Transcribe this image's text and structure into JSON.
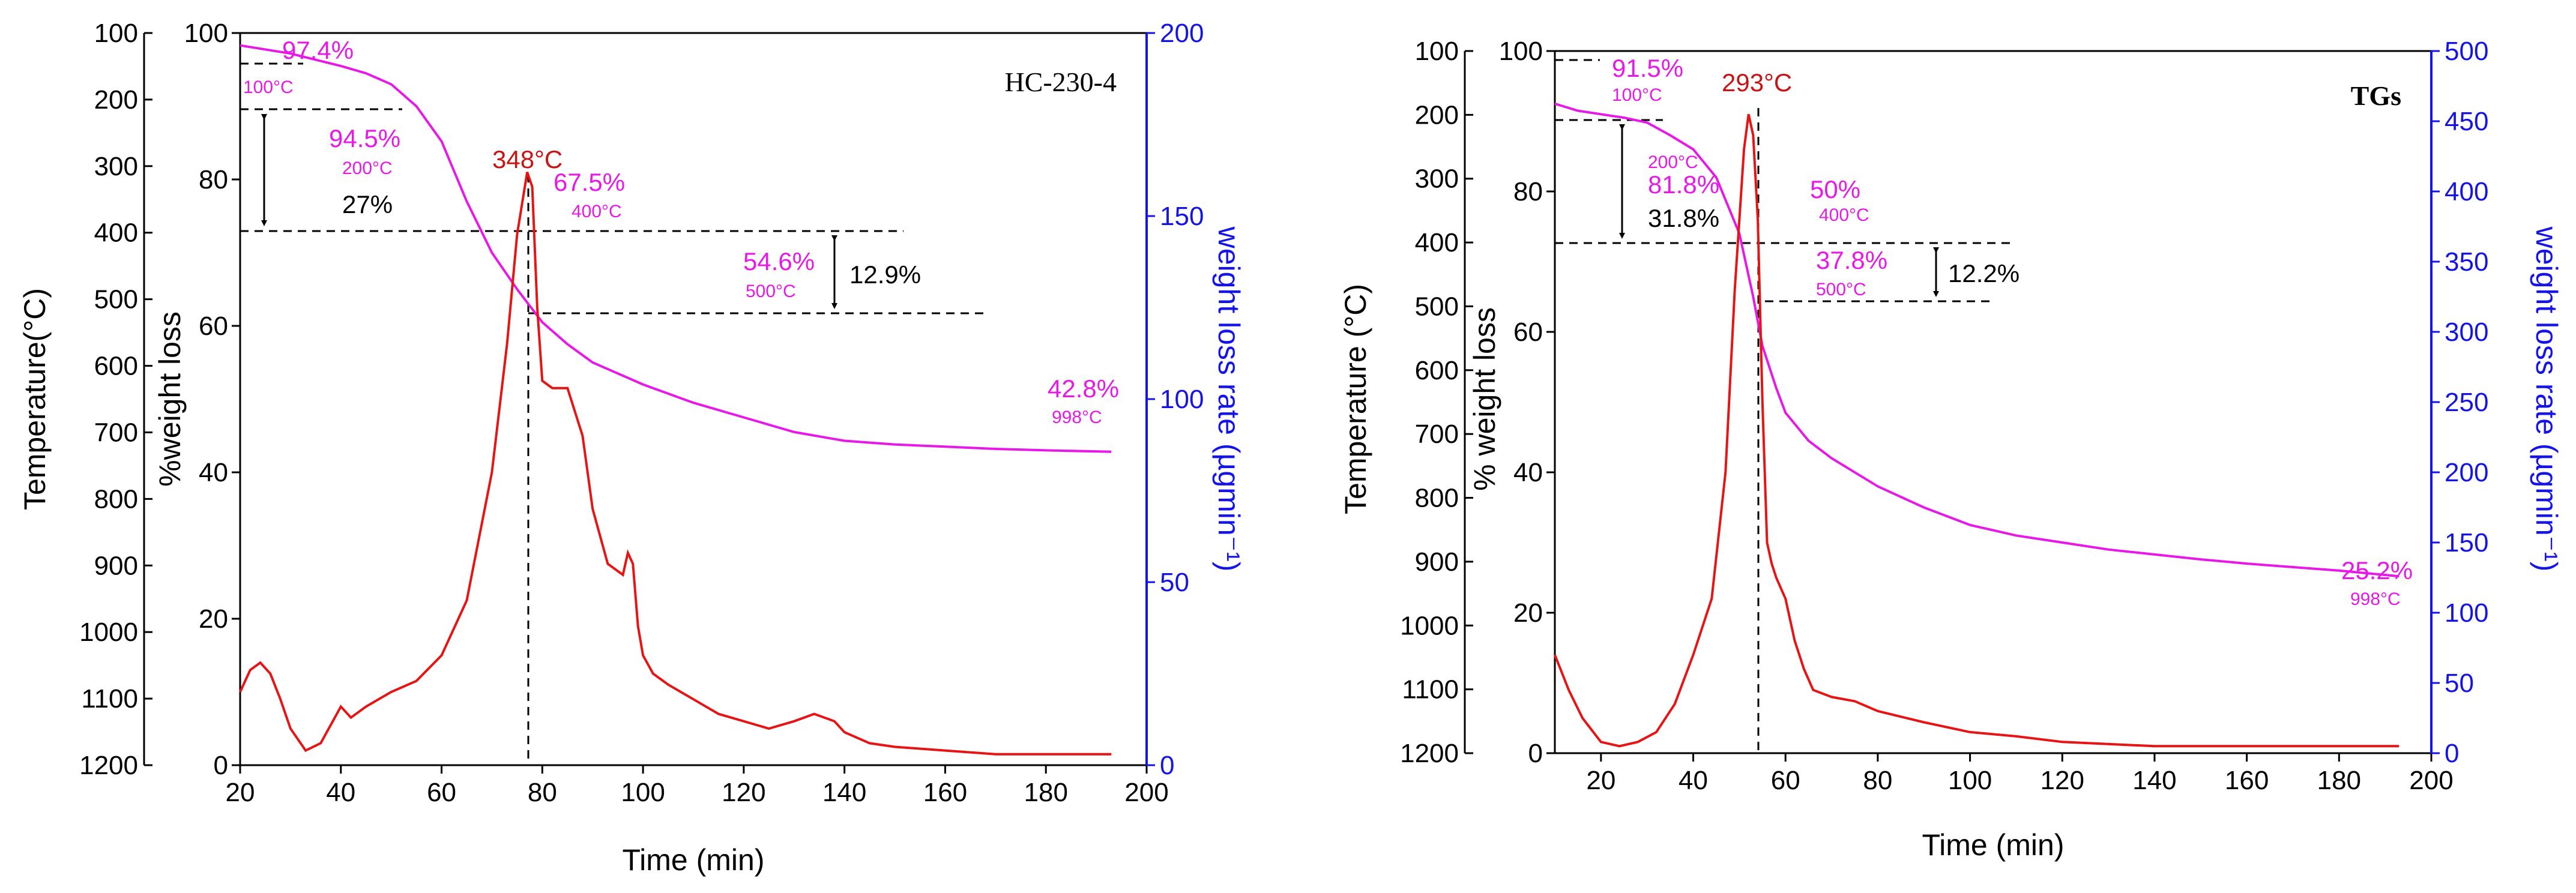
{
  "colors": {
    "weight_curve": "#e619e6",
    "rate_curve": "#e61414",
    "right_axis": "#1414e6",
    "annotation_magenta": "#e619e6",
    "peak_label": "#c81414",
    "black": "#000000"
  },
  "chart_data": [
    {
      "type": "line",
      "label": "HC-230-4",
      "xlabel": "Time (min)",
      "xlim": [
        20,
        200
      ],
      "xticks": [
        "20",
        "40",
        "60",
        "80",
        "100",
        "120",
        "140",
        "160",
        "180",
        "200"
      ],
      "ylabel_weight": "%weight loss",
      "ylim_weight": [
        0,
        100
      ],
      "yticks_weight": [
        "0",
        "20",
        "40",
        "60",
        "80",
        "100"
      ],
      "ylabel_temp": "Temperature(°C)",
      "yticks_temp": [
        "100",
        "200",
        "300",
        "400",
        "500",
        "600",
        "700",
        "800",
        "900",
        "1000",
        "1100",
        "1200"
      ],
      "ylabel_rate": "weight loss rate (µgmin⁻¹)",
      "ylim_rate": [
        0,
        200
      ],
      "yticks_rate": [
        "0",
        "50",
        "100",
        "150",
        "200"
      ],
      "series": [
        {
          "name": "% weight loss",
          "axis": "weight",
          "x": [
            20,
            30,
            40,
            45,
            50,
            55,
            60,
            65,
            70,
            75,
            80,
            85,
            90,
            100,
            110,
            120,
            130,
            140,
            150,
            160,
            170,
            180,
            193
          ],
          "y": [
            98.3,
            97.2,
            95.5,
            94.5,
            93.0,
            90.0,
            85.2,
            77.0,
            70.0,
            65.0,
            60.5,
            57.5,
            55.0,
            52.0,
            49.5,
            47.5,
            45.5,
            44.3,
            43.8,
            43.5,
            43.2,
            43.0,
            42.8
          ]
        },
        {
          "name": "weight loss rate",
          "axis": "rate",
          "x": [
            20,
            22,
            24,
            26,
            28,
            30,
            33,
            36,
            40,
            42,
            45,
            50,
            55,
            60,
            65,
            70,
            73,
            75,
            77,
            78,
            79,
            80,
            82,
            85,
            88,
            90,
            93,
            96,
            97,
            98,
            99,
            100,
            102,
            105,
            110,
            115,
            120,
            125,
            130,
            134,
            138,
            140,
            145,
            150,
            160,
            170,
            180,
            190,
            193
          ],
          "y": [
            20,
            26,
            28,
            25,
            18,
            10,
            4,
            6,
            16,
            13,
            16,
            20,
            23,
            30,
            45,
            80,
            115,
            145,
            162,
            158,
            125,
            105,
            103,
            103,
            90,
            70,
            55,
            52,
            58,
            55,
            38,
            30,
            25,
            22,
            18,
            14,
            12,
            10,
            12,
            14,
            12,
            9,
            6,
            5,
            4,
            3,
            3,
            3,
            3
          ]
        }
      ],
      "annotations": {
        "peak": "348°C",
        "labels": [
          "97.4%",
          "94.5%",
          "67.5%",
          "54.6%",
          "42.8%"
        ],
        "temps": [
          "100°C",
          "200°C",
          "400°C",
          "500°C",
          "998°C"
        ],
        "losses": [
          "27%",
          "12.9%"
        ]
      }
    },
    {
      "type": "line",
      "label": "TGs",
      "xlabel": "Time (min)",
      "xlim": [
        10,
        200
      ],
      "xticks": [
        "20",
        "40",
        "60",
        "80",
        "100",
        "120",
        "140",
        "160",
        "180",
        "200"
      ],
      "ylabel_weight": "% weight loss",
      "ylim_weight": [
        0,
        100
      ],
      "yticks_weight": [
        "0",
        "20",
        "40",
        "60",
        "80",
        "100"
      ],
      "ylabel_temp": "Temperature (°C)",
      "yticks_temp": [
        "100",
        "200",
        "300",
        "400",
        "500",
        "600",
        "700",
        "800",
        "900",
        "1000",
        "1100",
        "1200"
      ],
      "ylabel_rate": "weight loss rate (µgmin⁻¹)",
      "ylim_rate": [
        0,
        500
      ],
      "yticks_rate": [
        "0",
        "50",
        "100",
        "150",
        "200",
        "250",
        "300",
        "350",
        "400",
        "450",
        "500"
      ],
      "series": [
        {
          "name": "% weight loss",
          "axis": "weight",
          "x": [
            10,
            15,
            20,
            25,
            30,
            35,
            40,
            45,
            50,
            53,
            55,
            58,
            60,
            65,
            70,
            80,
            90,
            100,
            110,
            120,
            130,
            140,
            150,
            160,
            170,
            180,
            193
          ],
          "y": [
            92.5,
            91.5,
            91.0,
            90.5,
            89.8,
            88.0,
            86.0,
            82.0,
            74.0,
            65.0,
            58.0,
            52.0,
            48.5,
            44.5,
            42.0,
            38.0,
            35.0,
            32.5,
            31.0,
            30.0,
            29.0,
            28.3,
            27.6,
            27.0,
            26.5,
            26.0,
            25.2
          ]
        },
        {
          "name": "weight loss rate",
          "axis": "rate",
          "x": [
            10,
            13,
            16,
            20,
            24,
            28,
            32,
            36,
            40,
            44,
            47,
            49,
            51,
            52,
            53,
            54,
            55,
            56,
            57,
            58,
            60,
            62,
            64,
            66,
            70,
            75,
            80,
            90,
            100,
            110,
            120,
            140,
            160,
            180,
            193
          ],
          "y": [
            70,
            45,
            25,
            8,
            5,
            8,
            15,
            35,
            70,
            110,
            200,
            330,
            430,
            455,
            440,
            380,
            250,
            150,
            135,
            125,
            110,
            80,
            60,
            45,
            40,
            37,
            30,
            22,
            15,
            12,
            8,
            5,
            5,
            5,
            5
          ]
        }
      ],
      "annotations": {
        "peak": "293°C",
        "labels": [
          "91.5%",
          "81.8%",
          "50%",
          "37.8%",
          "25.2%"
        ],
        "temps": [
          "100°C",
          "200°C",
          "400°C",
          "500°C",
          "998°C"
        ],
        "losses": [
          "31.8%",
          "12.2%"
        ]
      }
    }
  ]
}
